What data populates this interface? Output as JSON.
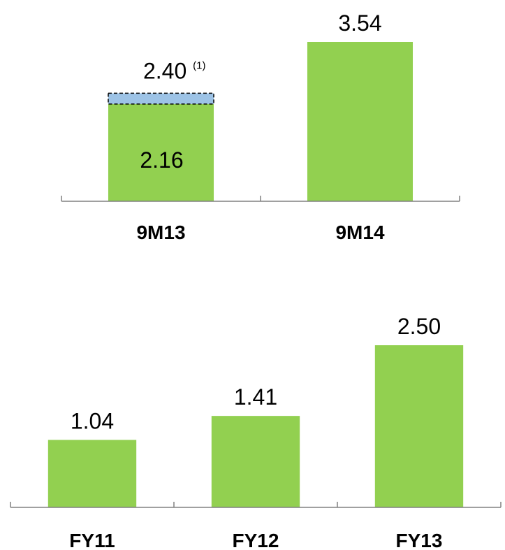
{
  "chart_data": [
    {
      "type": "bar",
      "categories": [
        "9M13",
        "9M14"
      ],
      "values": [
        2.16,
        3.54
      ],
      "value_labels": [
        "2.16",
        "3.54"
      ],
      "adjusted": {
        "category": "9M13",
        "value": 2.4,
        "label": "2.40",
        "footnote_marker": "(1)"
      },
      "ylim": [
        0,
        3.54
      ],
      "grid": false,
      "colors": {
        "bar": "#92D050",
        "adjustment": "#9DC3E6",
        "axis": "#808080"
      }
    },
    {
      "type": "bar",
      "categories": [
        "FY11",
        "FY12",
        "FY13"
      ],
      "values": [
        1.04,
        1.41,
        2.5
      ],
      "value_labels": [
        "1.04",
        "1.41",
        "2.50"
      ],
      "ylim": [
        0,
        2.5
      ],
      "grid": false,
      "colors": {
        "bar": "#92D050",
        "axis": "#808080"
      }
    }
  ]
}
